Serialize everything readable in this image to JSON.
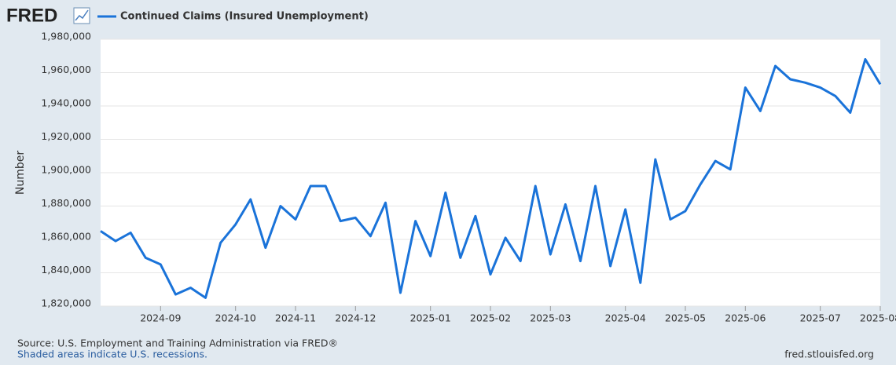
{
  "chart_data": {
    "type": "line",
    "logo": "FRED",
    "y_label": "Number",
    "source": "Source: U.S. Employment and Training Administration via FRED®",
    "note": "Shaded areas indicate U.S. recessions.",
    "site": "fred.stlouisfed.org",
    "categories": [
      null,
      null,
      null,
      null,
      "2024-09",
      null,
      null,
      null,
      null,
      "2024-10",
      null,
      null,
      null,
      "2024-11",
      null,
      null,
      null,
      "2024-12",
      null,
      null,
      null,
      null,
      "2025-01",
      null,
      null,
      null,
      "2025-02",
      null,
      null,
      null,
      "2025-03",
      null,
      null,
      null,
      null,
      "2025-04",
      null,
      null,
      null,
      "2025-05",
      null,
      null,
      null,
      "2025-06",
      null,
      null,
      null,
      null,
      "2025-07",
      null,
      null,
      null,
      "2025-08"
    ],
    "series": [
      {
        "name": "Continued Claims (Insured Unemployment)",
        "color": "#1a73d9",
        "values": [
          1865000,
          1859000,
          1864000,
          1849000,
          1845000,
          1827000,
          1831000,
          1825000,
          1858000,
          1869000,
          1884000,
          1855000,
          1880000,
          1872000,
          1892000,
          1892000,
          1871000,
          1873000,
          1862000,
          1882000,
          1828000,
          1871000,
          1850000,
          1888000,
          1849000,
          1874000,
          1839000,
          1861000,
          1847000,
          1892000,
          1851000,
          1881000,
          1847000,
          1892000,
          1844000,
          1878000,
          1834000,
          1908000,
          1872000,
          1877000,
          1893000,
          1907000,
          1902000,
          1951000,
          1937000,
          1964000,
          1956000,
          1954000,
          1951000,
          1946000,
          1936000,
          1968000,
          1953000
        ]
      }
    ],
    "ylim": [
      1820000,
      1980000
    ],
    "yticks": [
      {
        "value": 1820000,
        "label": "1,820,000"
      },
      {
        "value": 1840000,
        "label": "1,840,000"
      },
      {
        "value": 1860000,
        "label": "1,860,000"
      },
      {
        "value": 1880000,
        "label": "1,880,000"
      },
      {
        "value": 1900000,
        "label": "1,900,000"
      },
      {
        "value": 1920000,
        "label": "1,920,000"
      },
      {
        "value": 1940000,
        "label": "1,940,000"
      },
      {
        "value": 1960000,
        "label": "1,960,000"
      },
      {
        "value": 1980000,
        "label": "1,980,000"
      }
    ],
    "grid": true
  }
}
